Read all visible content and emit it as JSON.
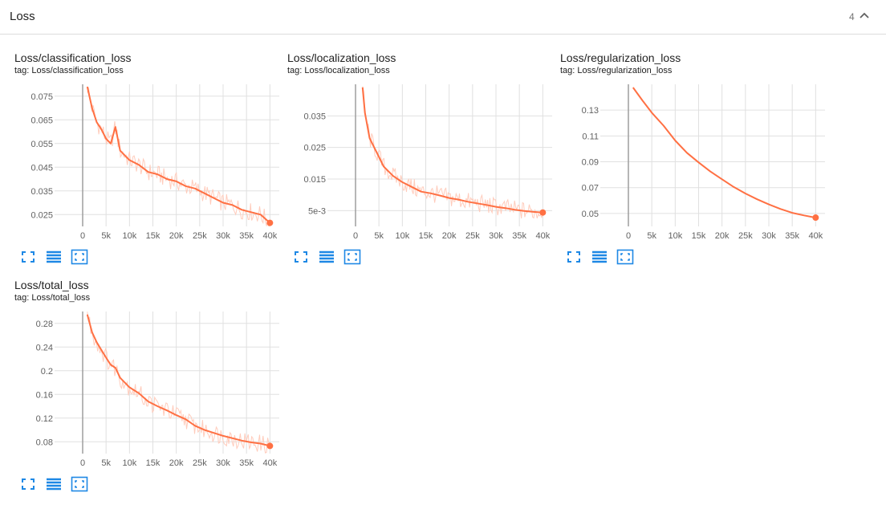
{
  "section": {
    "title": "Loss",
    "count": "4"
  },
  "colors": {
    "line": "#ff7043",
    "raw": "#ffccbc",
    "grid": "#e0e0e0",
    "axis": "#9e9e9e",
    "accent": "#1e88e5"
  },
  "toolbar_icons": [
    "fit-to-data-icon",
    "toggle-log-scale-icon",
    "expand-chart-icon"
  ],
  "cards": [
    {
      "title": "Loss/classification_loss",
      "tag": "tag: Loss/classification_loss"
    },
    {
      "title": "Loss/localization_loss",
      "tag": "tag: Loss/localization_loss"
    },
    {
      "title": "Loss/regularization_loss",
      "tag": "tag: Loss/regularization_loss"
    },
    {
      "title": "Loss/total_loss",
      "tag": "tag: Loss/total_loss"
    }
  ],
  "chart_data": [
    {
      "type": "line",
      "title": "Loss/classification_loss",
      "xlim": [
        -6000,
        42000
      ],
      "ylim": [
        0.02,
        0.08
      ],
      "xticks": [
        0,
        5000,
        10000,
        15000,
        20000,
        25000,
        30000,
        35000,
        40000
      ],
      "xtick_labels": [
        "0",
        "5k",
        "10k",
        "15k",
        "20k",
        "25k",
        "30k",
        "35k",
        "40k"
      ],
      "yticks": [
        0.025,
        0.035,
        0.045,
        0.055,
        0.065,
        0.075
      ],
      "ytick_labels": [
        "0.025",
        "0.035",
        "0.045",
        "0.055",
        "0.065",
        "0.075"
      ],
      "grid": true,
      "series": [
        {
          "x": [
            1000,
            2000,
            3000,
            4000,
            5000,
            6000,
            7000,
            8000,
            10000,
            12000,
            14000,
            16000,
            18000,
            20000,
            22000,
            24000,
            26000,
            28000,
            30000,
            32000,
            34000,
            36000,
            38000,
            40000
          ],
          "y": [
            0.079,
            0.07,
            0.064,
            0.061,
            0.057,
            0.055,
            0.062,
            0.052,
            0.048,
            0.046,
            0.043,
            0.042,
            0.04,
            0.039,
            0.037,
            0.036,
            0.034,
            0.032,
            0.03,
            0.029,
            0.027,
            0.026,
            0.025,
            0.0215
          ]
        }
      ]
    },
    {
      "type": "line",
      "title": "Loss/localization_loss",
      "xlim": [
        -6000,
        42000
      ],
      "ylim": [
        0.0,
        0.045
      ],
      "xticks": [
        0,
        5000,
        10000,
        15000,
        20000,
        25000,
        30000,
        35000,
        40000
      ],
      "xtick_labels": [
        "0",
        "5k",
        "10k",
        "15k",
        "20k",
        "25k",
        "30k",
        "35k",
        "40k"
      ],
      "yticks": [
        0.005,
        0.015,
        0.025,
        0.035
      ],
      "ytick_labels": [
        "5e-3",
        "0.015",
        "0.025",
        "0.035"
      ],
      "grid": true,
      "series": [
        {
          "x": [
            1500,
            2000,
            3000,
            4000,
            5000,
            6000,
            8000,
            10000,
            12000,
            14000,
            16000,
            18000,
            20000,
            22000,
            24000,
            26000,
            28000,
            30000,
            32000,
            34000,
            36000,
            38000,
            40000
          ],
          "y": [
            0.044,
            0.036,
            0.028,
            0.025,
            0.022,
            0.019,
            0.016,
            0.014,
            0.0125,
            0.011,
            0.0105,
            0.0098,
            0.009,
            0.0085,
            0.0078,
            0.0073,
            0.0068,
            0.0062,
            0.0058,
            0.0053,
            0.0049,
            0.0046,
            0.0044
          ]
        }
      ]
    },
    {
      "type": "line",
      "title": "Loss/regularization_loss",
      "xlim": [
        -6000,
        42000
      ],
      "ylim": [
        0.04,
        0.15
      ],
      "xticks": [
        0,
        5000,
        10000,
        15000,
        20000,
        25000,
        30000,
        35000,
        40000
      ],
      "xtick_labels": [
        "0",
        "5k",
        "10k",
        "15k",
        "20k",
        "25k",
        "30k",
        "35k",
        "40k"
      ],
      "yticks": [
        0.05,
        0.07,
        0.09,
        0.11,
        0.13
      ],
      "ytick_labels": [
        "0.05",
        "0.07",
        "0.09",
        "0.11",
        "0.13"
      ],
      "grid": true,
      "series": [
        {
          "x": [
            1000,
            3000,
            5000,
            7500,
            10000,
            12500,
            15000,
            17500,
            20000,
            22500,
            25000,
            27500,
            30000,
            32500,
            35000,
            37500,
            40000
          ],
          "y": [
            0.1475,
            0.1375,
            0.128,
            0.118,
            0.1065,
            0.097,
            0.0895,
            0.0825,
            0.0765,
            0.0705,
            0.0655,
            0.061,
            0.057,
            0.0535,
            0.0505,
            0.0485,
            0.0468
          ]
        }
      ]
    },
    {
      "type": "line",
      "title": "Loss/total_loss",
      "xlim": [
        -6000,
        42000
      ],
      "ylim": [
        0.06,
        0.3
      ],
      "xticks": [
        0,
        5000,
        10000,
        15000,
        20000,
        25000,
        30000,
        35000,
        40000
      ],
      "xtick_labels": [
        "0",
        "5k",
        "10k",
        "15k",
        "20k",
        "25k",
        "30k",
        "35k",
        "40k"
      ],
      "yticks": [
        0.08,
        0.12,
        0.16,
        0.2,
        0.24,
        0.28
      ],
      "ytick_labels": [
        "0.08",
        "0.12",
        "0.16",
        "0.2",
        "0.24",
        "0.28"
      ],
      "grid": true,
      "series": [
        {
          "x": [
            1000,
            2000,
            3000,
            4000,
            5000,
            6000,
            7000,
            8000,
            10000,
            12000,
            14000,
            16000,
            18000,
            20000,
            22000,
            24000,
            26000,
            28000,
            30000,
            32000,
            34000,
            36000,
            38000,
            40000
          ],
          "y": [
            0.295,
            0.265,
            0.248,
            0.235,
            0.222,
            0.21,
            0.205,
            0.188,
            0.172,
            0.162,
            0.148,
            0.14,
            0.133,
            0.125,
            0.118,
            0.107,
            0.1,
            0.095,
            0.09,
            0.086,
            0.082,
            0.079,
            0.077,
            0.073
          ]
        }
      ]
    }
  ]
}
